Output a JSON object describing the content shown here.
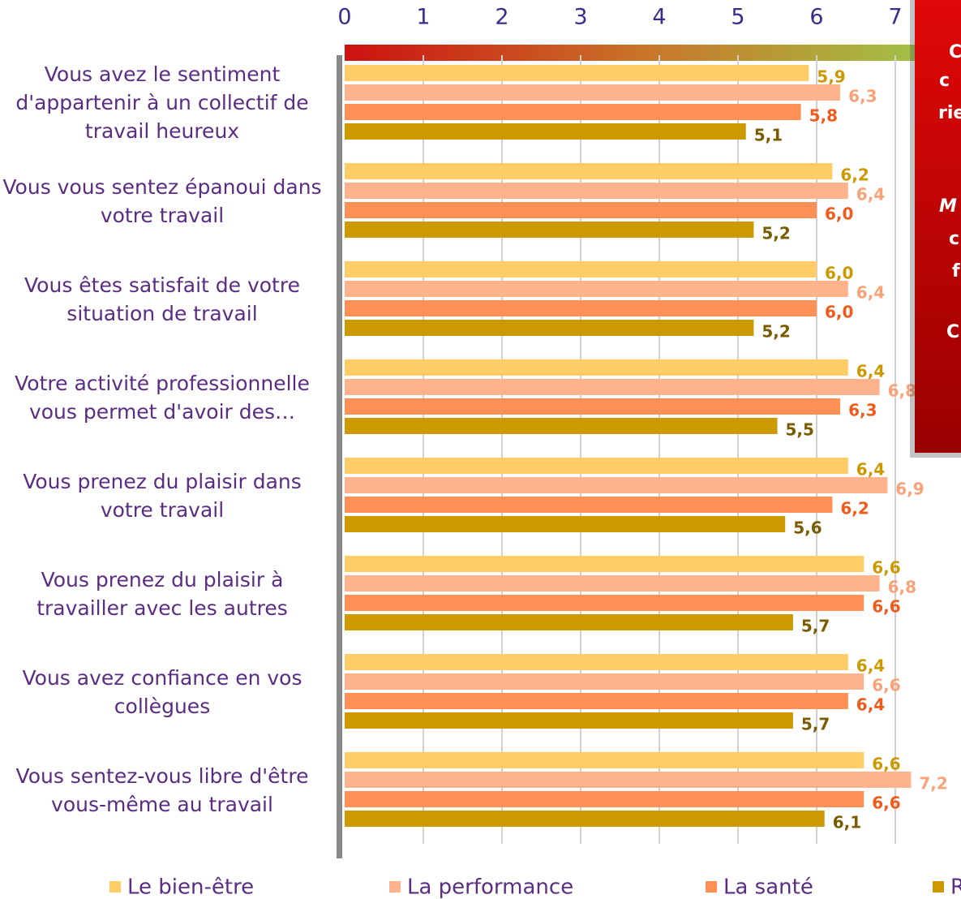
{
  "chart_data": {
    "type": "bar",
    "orientation": "horizontal",
    "categories": [
      "Vous avez le sentiment d'appartenir à un collectif de travail heureux",
      "Vous vous sentez épanoui dans votre travail",
      "Vous êtes satisfait de votre situation de travail",
      "Votre activité professionnelle vous permet d'avoir des…",
      "Vous prenez du plaisir dans votre travail",
      "Vous prenez du plaisir à travailler avec les autres",
      "Vous avez confiance en vos collègues",
      "Vous sentez-vous libre d'être vous-même au travail"
    ],
    "series": [
      {
        "name": "Le bien-être",
        "color": "#ffcc66",
        "label_color": "#cc9900",
        "values": [
          5.9,
          6.2,
          6.0,
          6.4,
          6.4,
          6.6,
          6.4,
          6.6
        ],
        "value_labels": [
          "5,9",
          "6,2",
          "6,0",
          "6,4",
          "6,4",
          "6,6",
          "6,4",
          "6,6"
        ]
      },
      {
        "name": "La performance",
        "color": "#ffb38c",
        "label_color": "#f9a27a",
        "values": [
          6.3,
          6.4,
          6.4,
          6.8,
          6.9,
          6.8,
          6.6,
          7.2
        ],
        "value_labels": [
          "6,3",
          "6,4",
          "6,4",
          "6,8",
          "6,9",
          "6,8",
          "6,6",
          "7,2"
        ]
      },
      {
        "name": "La santé",
        "color": "#ff9055",
        "label_color": "#f05a1a",
        "values": [
          5.8,
          6.0,
          6.0,
          6.3,
          6.2,
          6.6,
          6.4,
          6.6
        ],
        "value_labels": [
          "5,8",
          "6,0",
          "6,0",
          "6,3",
          "6,2",
          "6,6",
          "6,4",
          "6,6"
        ]
      },
      {
        "name": "R",
        "color": "#cc9900",
        "label_color": "#7a5c00",
        "values": [
          5.1,
          5.2,
          5.2,
          5.5,
          5.6,
          5.7,
          5.7,
          6.1
        ],
        "value_labels": [
          "5,1",
          "5,2",
          "5,2",
          "5,5",
          "5,6",
          "5,7",
          "5,7",
          "6,1"
        ]
      }
    ],
    "xlim": [
      0,
      7.8
    ],
    "xticks": [
      0,
      1,
      2,
      3,
      4,
      5,
      6,
      7
    ],
    "grid": true,
    "box_texts": [
      "C",
      "c",
      "rie",
      "M",
      "c",
      "f",
      "C"
    ]
  }
}
